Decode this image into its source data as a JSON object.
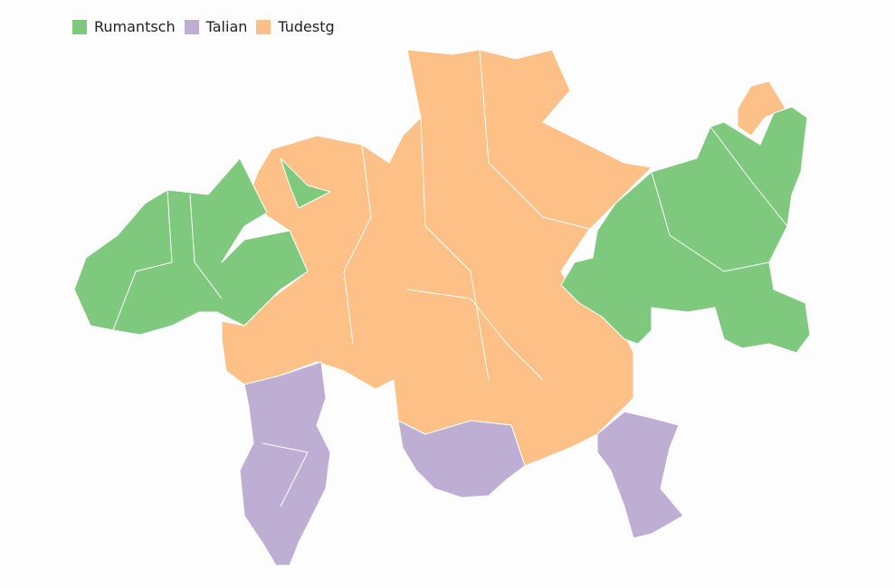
{
  "legend": {
    "items": [
      {
        "label": "Rumantsch",
        "color": "#7fc97f"
      },
      {
        "label": "Talian",
        "color": "#beaed4"
      },
      {
        "label": "Tudestg",
        "color": "#fdc086"
      }
    ]
  },
  "map": {
    "regions": [
      {
        "language": "Rumantsch",
        "area": "west"
      },
      {
        "language": "Rumantsch",
        "area": "central-small"
      },
      {
        "language": "Tudestg",
        "area": "central"
      },
      {
        "language": "Tudestg",
        "area": "north-east"
      },
      {
        "language": "Rumantsch",
        "area": "east"
      },
      {
        "language": "Talian",
        "area": "south-west"
      },
      {
        "language": "Talian",
        "area": "south-central"
      },
      {
        "language": "Talian",
        "area": "south-east"
      }
    ]
  }
}
